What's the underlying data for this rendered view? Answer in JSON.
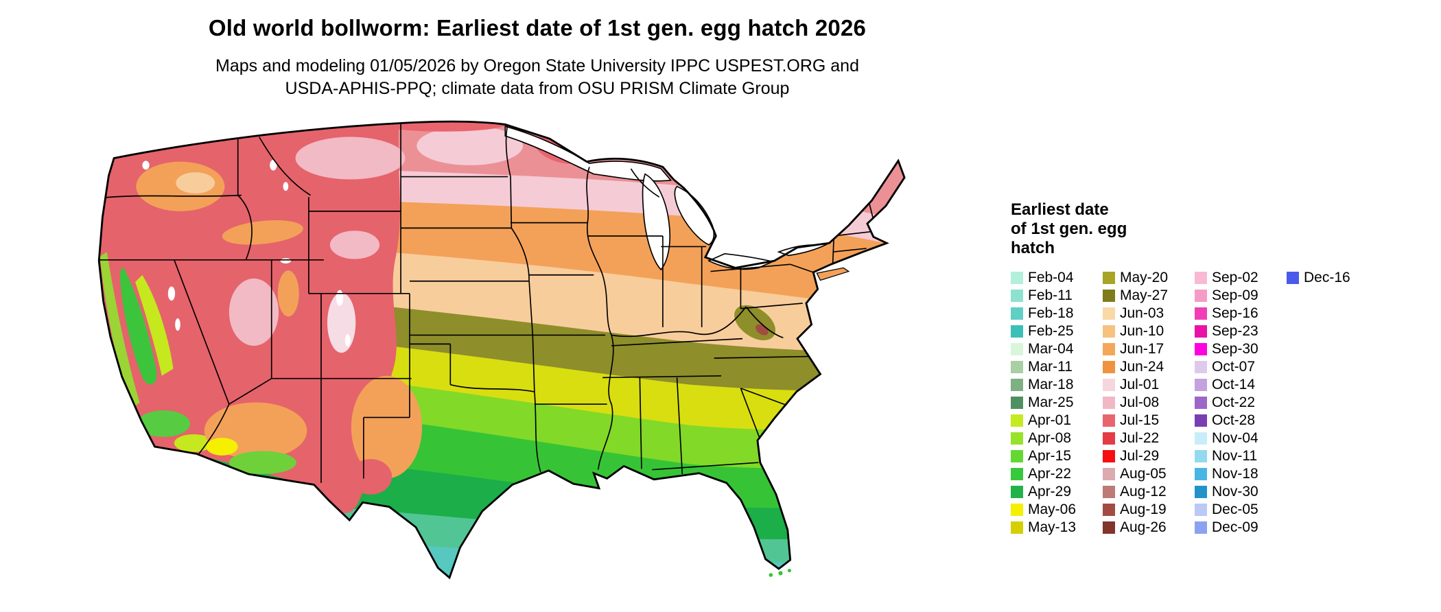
{
  "title": "Old world bollworm: Earliest date of 1st gen. egg hatch 2026",
  "subtitle_line1": "Maps and modeling 01/05/2026 by Oregon State University IPPC USPEST.ORG and",
  "subtitle_line2": "USDA-APHIS-PPQ; climate data from OSU PRISM Climate Group",
  "legend": {
    "title_lines": [
      "Earliest date",
      "of 1st gen. egg",
      "hatch"
    ],
    "columns": [
      [
        {
          "label": "Feb-04",
          "color": "#b2f0dc"
        },
        {
          "label": "Feb-11",
          "color": "#8ce2cf"
        },
        {
          "label": "Feb-18",
          "color": "#60cfc4"
        },
        {
          "label": "Feb-25",
          "color": "#3bbfb9"
        },
        {
          "label": "Mar-04",
          "color": "#d9f6da"
        },
        {
          "label": "Mar-11",
          "color": "#a9cfa4"
        },
        {
          "label": "Mar-18",
          "color": "#7db184"
        },
        {
          "label": "Mar-25",
          "color": "#4f9060"
        },
        {
          "label": "Apr-01",
          "color": "#c4ea21"
        },
        {
          "label": "Apr-08",
          "color": "#97e22b"
        },
        {
          "label": "Apr-15",
          "color": "#63d832"
        },
        {
          "label": "Apr-22",
          "color": "#36c93b"
        },
        {
          "label": "Apr-29",
          "color": "#21b348"
        },
        {
          "label": "May-06",
          "color": "#f4f000"
        },
        {
          "label": "May-13",
          "color": "#d5cf00"
        }
      ],
      [
        {
          "label": "May-20",
          "color": "#a8a426"
        },
        {
          "label": "May-27",
          "color": "#7f7c1b"
        },
        {
          "label": "Jun-03",
          "color": "#f9d9a7"
        },
        {
          "label": "Jun-10",
          "color": "#f7c180"
        },
        {
          "label": "Jun-17",
          "color": "#f5a759"
        },
        {
          "label": "Jun-24",
          "color": "#f0923f"
        },
        {
          "label": "Jul-01",
          "color": "#f6d6dd"
        },
        {
          "label": "Jul-08",
          "color": "#f2b7c5"
        },
        {
          "label": "Jul-15",
          "color": "#e9656e"
        },
        {
          "label": "Jul-22",
          "color": "#e43b44"
        },
        {
          "label": "Jul-29",
          "color": "#f50f10"
        },
        {
          "label": "Aug-05",
          "color": "#dbaab0"
        },
        {
          "label": "Aug-12",
          "color": "#bd7a76"
        },
        {
          "label": "Aug-19",
          "color": "#a34b42"
        },
        {
          "label": "Aug-26",
          "color": "#81352b"
        }
      ],
      [
        {
          "label": "Sep-02",
          "color": "#f8b9d4"
        },
        {
          "label": "Sep-09",
          "color": "#f49cc6"
        },
        {
          "label": "Sep-16",
          "color": "#f23eb6"
        },
        {
          "label": "Sep-23",
          "color": "#ea10a8"
        },
        {
          "label": "Sep-30",
          "color": "#ff00de"
        },
        {
          "label": "Oct-07",
          "color": "#dec9ec"
        },
        {
          "label": "Oct-14",
          "color": "#c3a2dd"
        },
        {
          "label": "Oct-22",
          "color": "#9d66c9"
        },
        {
          "label": "Oct-28",
          "color": "#7a3eb4"
        },
        {
          "label": "Nov-04",
          "color": "#c9ecf9"
        },
        {
          "label": "Nov-11",
          "color": "#93d9f0"
        },
        {
          "label": "Nov-18",
          "color": "#49b5e2"
        },
        {
          "label": "Nov-30",
          "color": "#2292c9"
        },
        {
          "label": "Dec-05",
          "color": "#bac9f5"
        },
        {
          "label": "Dec-09",
          "color": "#8ba2ee"
        }
      ],
      [
        {
          "label": "Dec-16",
          "color": "#4a5beb"
        }
      ]
    ]
  }
}
